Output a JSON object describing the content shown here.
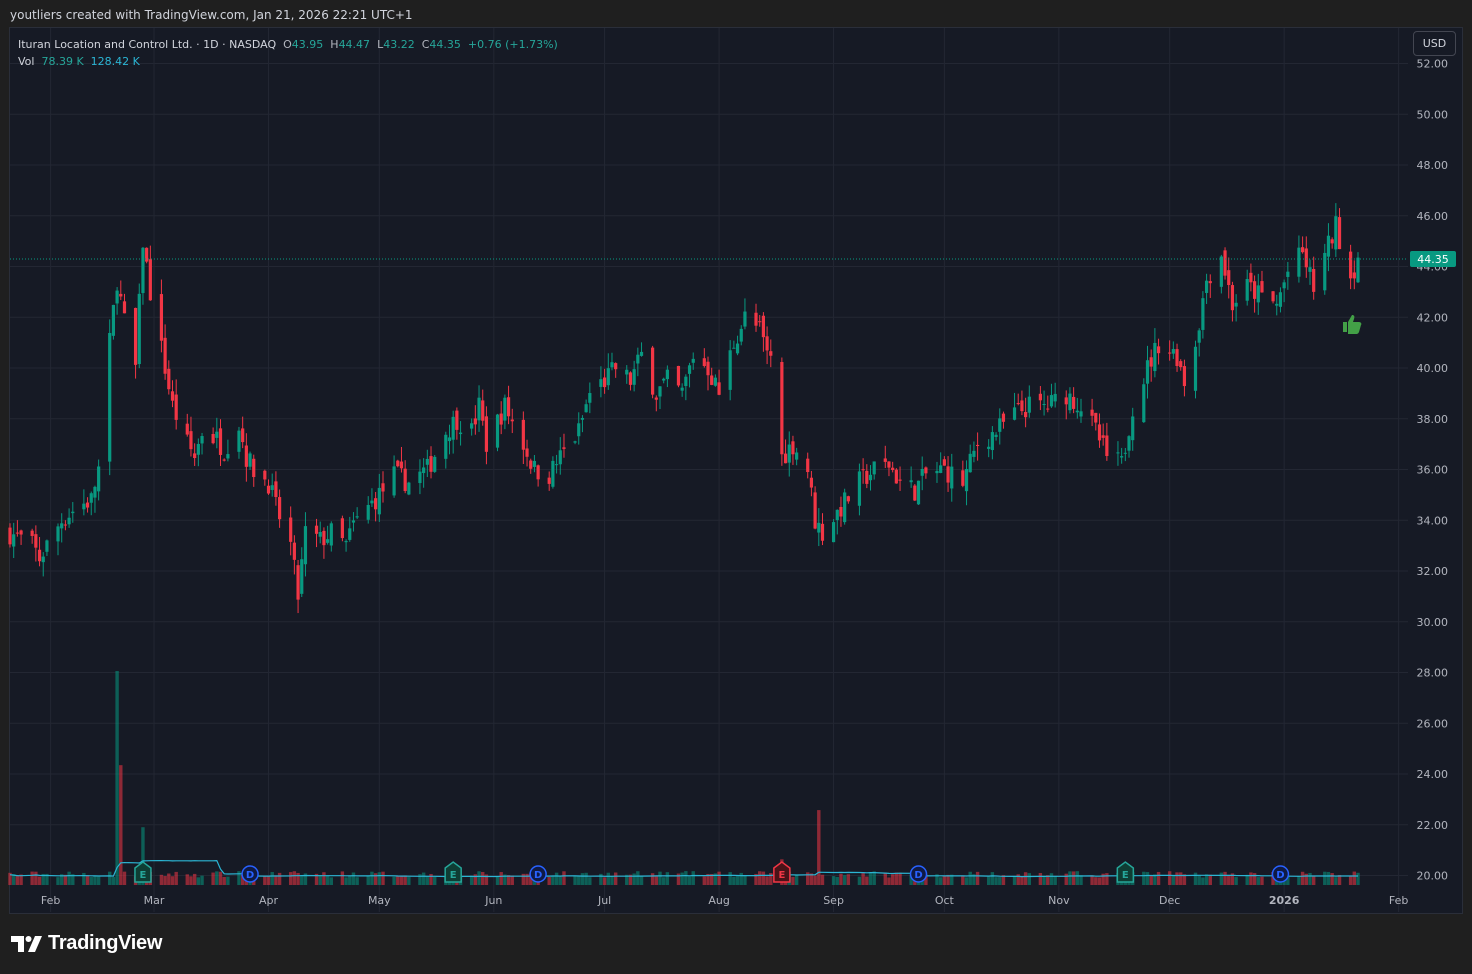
{
  "header": {
    "text": "youtliers created with TradingView.com, Jan 21, 2026 22:21 UTC+1"
  },
  "legend": {
    "symbol": "Ituran Location and Control Ltd. · 1D · NASDAQ",
    "o_label": "O",
    "o": "43.95",
    "h_label": "H",
    "h": "44.47",
    "l_label": "L",
    "l": "43.22",
    "c_label": "C",
    "c": "44.35",
    "change": "+0.76 (+1.73%)",
    "vol_label": "Vol",
    "vol": "78.39 K",
    "vol_ma": "128.42 K"
  },
  "currency_button": "USD",
  "last_price_tag": "44.35",
  "brand": "TradingView",
  "colors": {
    "up": "#089981",
    "down": "#f23645",
    "vol_ma": "#2bb5d4",
    "dividend": "#2962ff",
    "background": "#161a25"
  },
  "chart_data": {
    "type": "candlestick",
    "y_ticks": [
      "52.00",
      "50.00",
      "48.00",
      "46.00",
      "44.00",
      "42.00",
      "40.00",
      "38.00",
      "36.00",
      "34.00",
      "32.00",
      "30.00",
      "28.00",
      "26.00",
      "24.00",
      "22.00",
      "20.00"
    ],
    "ylim": [
      20,
      52
    ],
    "x_ticks": [
      "Feb",
      "Mar",
      "Apr",
      "May",
      "Jun",
      "Jul",
      "Aug",
      "Sep",
      "Oct",
      "Nov",
      "Dec",
      "2026",
      "Feb"
    ],
    "x_tick_bold": [
      false,
      false,
      false,
      false,
      false,
      false,
      false,
      false,
      false,
      false,
      false,
      true,
      false
    ],
    "last_close": 44.35,
    "close_path": [
      [
        "2025-01-21",
        33.5
      ],
      [
        "2025-01-27",
        33.0
      ],
      [
        "2025-01-29",
        32.5
      ],
      [
        "2025-02-04",
        34.0
      ],
      [
        "2025-02-08",
        34.5
      ],
      [
        "2025-02-12",
        34.8
      ],
      [
        "2025-02-14",
        36.0
      ],
      [
        "2025-02-17",
        41.0
      ],
      [
        "2025-02-19",
        43.5
      ],
      [
        "2025-02-21",
        41.8
      ],
      [
        "2025-02-24",
        40.0
      ],
      [
        "2025-02-26",
        45.0
      ],
      [
        "2025-02-28",
        43.0
      ],
      [
        "2025-03-04",
        40.0
      ],
      [
        "2025-03-06",
        38.5
      ],
      [
        "2025-03-10",
        37.0
      ],
      [
        "2025-03-12",
        36.5
      ],
      [
        "2025-03-14",
        37.5
      ],
      [
        "2025-03-18",
        37.2
      ],
      [
        "2025-03-20",
        36.8
      ],
      [
        "2025-03-24",
        37.8
      ],
      [
        "2025-03-26",
        36.5
      ],
      [
        "2025-03-28",
        36.0
      ],
      [
        "2025-04-01",
        35.5
      ],
      [
        "2025-04-03",
        34.5
      ],
      [
        "2025-04-07",
        33.0
      ],
      [
        "2025-04-09",
        31.0
      ],
      [
        "2025-04-11",
        33.5
      ],
      [
        "2025-04-15",
        33.2
      ],
      [
        "2025-04-18",
        33.5
      ],
      [
        "2025-04-22",
        33.0
      ],
      [
        "2025-04-24",
        33.8
      ],
      [
        "2025-04-28",
        34.5
      ],
      [
        "2025-05-01",
        35.0
      ],
      [
        "2025-05-05",
        35.8
      ],
      [
        "2025-05-09",
        35.5
      ],
      [
        "2025-05-14",
        36.0
      ],
      [
        "2025-05-19",
        37.5
      ],
      [
        "2025-05-22",
        38.0
      ],
      [
        "2025-05-26",
        37.5
      ],
      [
        "2025-05-28",
        38.5
      ],
      [
        "2025-05-30",
        37.0
      ],
      [
        "2025-06-04",
        38.5
      ],
      [
        "2025-06-09",
        37.0
      ],
      [
        "2025-06-12",
        36.0
      ],
      [
        "2025-06-16",
        35.8
      ],
      [
        "2025-06-19",
        36.5
      ],
      [
        "2025-06-24",
        37.5
      ],
      [
        "2025-06-27",
        39.0
      ],
      [
        "2025-07-01",
        39.5
      ],
      [
        "2025-07-04",
        40.0
      ],
      [
        "2025-07-08",
        39.5
      ],
      [
        "2025-07-11",
        40.5
      ],
      [
        "2025-07-15",
        39.0
      ],
      [
        "2025-07-18",
        39.5
      ],
      [
        "2025-07-22",
        39.0
      ],
      [
        "2025-07-25",
        40.5
      ],
      [
        "2025-07-29",
        40.0
      ],
      [
        "2025-08-01",
        39.0
      ],
      [
        "2025-08-05",
        41.0
      ],
      [
        "2025-08-08",
        42.0
      ],
      [
        "2025-08-12",
        41.5
      ],
      [
        "2025-08-14",
        40.5
      ],
      [
        "2025-08-15",
        40.5
      ],
      [
        "2025-08-18",
        36.5
      ],
      [
        "2025-08-21",
        37.0
      ],
      [
        "2025-08-25",
        36.0
      ],
      [
        "2025-08-27",
        34.0
      ],
      [
        "2025-08-29",
        33.5
      ],
      [
        "2025-09-03",
        34.5
      ],
      [
        "2025-09-08",
        35.5
      ],
      [
        "2025-09-12",
        36.0
      ],
      [
        "2025-09-16",
        36.2
      ],
      [
        "2025-09-19",
        35.5
      ],
      [
        "2025-09-23",
        35.2
      ],
      [
        "2025-09-26",
        35.8
      ],
      [
        "2025-10-01",
        36.0
      ],
      [
        "2025-10-06",
        35.5
      ],
      [
        "2025-10-10",
        37.0
      ],
      [
        "2025-10-15",
        37.5
      ],
      [
        "2025-10-20",
        38.2
      ],
      [
        "2025-10-24",
        38.5
      ],
      [
        "2025-10-29",
        38.5
      ],
      [
        "2025-11-03",
        39.0
      ],
      [
        "2025-11-07",
        38.5
      ],
      [
        "2025-11-11",
        37.5
      ],
      [
        "2025-11-14",
        36.5
      ],
      [
        "2025-11-18",
        36.2
      ],
      [
        "2025-11-21",
        38.5
      ],
      [
        "2025-11-25",
        40.0
      ],
      [
        "2025-11-28",
        41.0
      ],
      [
        "2025-12-03",
        40.5
      ],
      [
        "2025-12-05",
        39.5
      ],
      [
        "2025-12-08",
        41.0
      ],
      [
        "2025-12-11",
        43.5
      ],
      [
        "2025-12-15",
        44.5
      ],
      [
        "2025-12-18",
        42.5
      ],
      [
        "2025-12-22",
        43.2
      ],
      [
        "2025-12-26",
        42.8
      ],
      [
        "2025-12-30",
        42.5
      ],
      [
        "2026-01-02",
        43.8
      ],
      [
        "2026-01-06",
        44.5
      ],
      [
        "2026-01-09",
        43.2
      ],
      [
        "2026-01-13",
        44.8
      ],
      [
        "2026-01-15",
        45.6
      ],
      [
        "2026-01-19",
        43.6
      ],
      [
        "2026-01-21",
        44.35
      ]
    ],
    "events": [
      {
        "type": "E",
        "date": "2025-02-26",
        "color": "green"
      },
      {
        "type": "D",
        "date": "2025-03-27",
        "color": "blue"
      },
      {
        "type": "E",
        "date": "2025-05-21",
        "color": "green"
      },
      {
        "type": "D",
        "date": "2025-06-13",
        "color": "blue"
      },
      {
        "type": "E",
        "date": "2025-08-18",
        "color": "red"
      },
      {
        "type": "D",
        "date": "2025-09-24",
        "color": "blue"
      },
      {
        "type": "E",
        "date": "2025-11-19",
        "color": "green"
      },
      {
        "type": "D",
        "date": "2025-12-31",
        "color": "blue"
      }
    ],
    "volume_spikes": [
      {
        "date": "2025-02-19",
        "rel": 1.0,
        "dir": "up"
      },
      {
        "date": "2025-02-20",
        "rel": 0.56,
        "dir": "down"
      },
      {
        "date": "2025-02-26",
        "rel": 0.27,
        "dir": "up"
      },
      {
        "date": "2025-08-18",
        "rel": 0.12,
        "dir": "down"
      },
      {
        "date": "2025-08-28",
        "rel": 0.35,
        "dir": "down"
      }
    ]
  }
}
